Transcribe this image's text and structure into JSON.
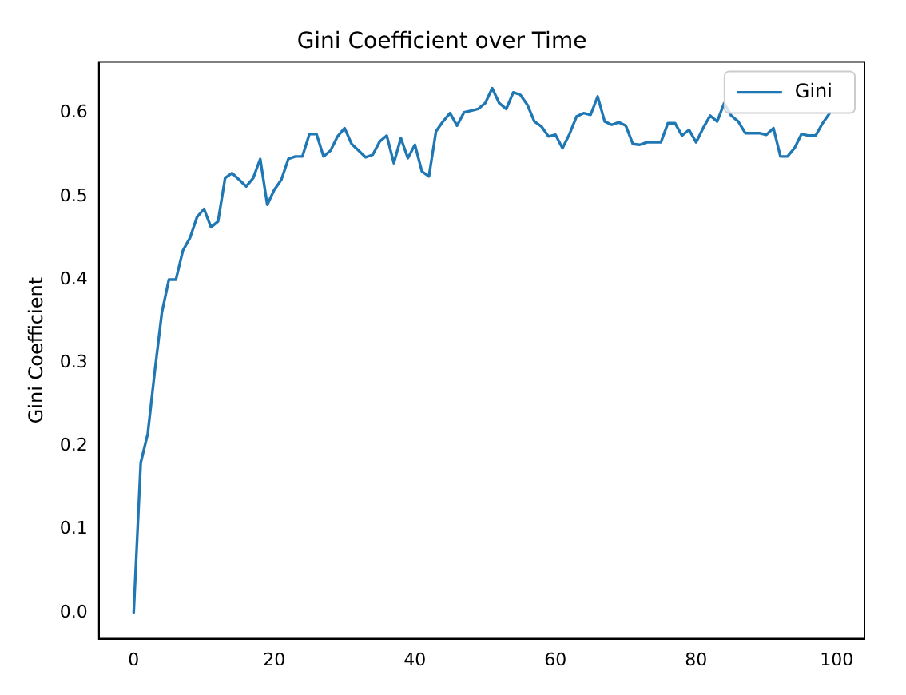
{
  "chart_data": {
    "type": "line",
    "title": "Gini Coefficient over Time",
    "ylabel": "Gini Coefficient",
    "x": [
      0,
      1,
      2,
      3,
      4,
      5,
      6,
      7,
      8,
      9,
      10,
      11,
      12,
      13,
      14,
      15,
      16,
      17,
      18,
      19,
      20,
      21,
      22,
      23,
      24,
      25,
      26,
      27,
      28,
      29,
      30,
      31,
      32,
      33,
      34,
      35,
      36,
      37,
      38,
      39,
      40,
      41,
      42,
      43,
      44,
      45,
      46,
      47,
      48,
      49,
      50,
      51,
      52,
      53,
      54,
      55,
      56,
      57,
      58,
      59,
      60,
      61,
      62,
      63,
      64,
      65,
      66,
      67,
      68,
      69,
      70,
      71,
      72,
      73,
      74,
      75,
      76,
      77,
      78,
      79,
      80,
      81,
      82,
      83,
      84,
      85,
      86,
      87,
      88,
      89,
      90,
      91,
      92,
      93,
      94,
      95,
      96,
      97,
      98,
      99
    ],
    "series": [
      {
        "name": "Gini",
        "color": "#1f77b4",
        "values": [
          0.0,
          0.18,
          0.215,
          0.29,
          0.36,
          0.4,
          0.4,
          0.435,
          0.45,
          0.475,
          0.485,
          0.463,
          0.47,
          0.522,
          0.528,
          0.52,
          0.512,
          0.522,
          0.545,
          0.49,
          0.508,
          0.52,
          0.545,
          0.548,
          0.548,
          0.575,
          0.575,
          0.548,
          0.555,
          0.572,
          0.582,
          0.563,
          0.555,
          0.547,
          0.55,
          0.566,
          0.573,
          0.54,
          0.57,
          0.546,
          0.562,
          0.53,
          0.524,
          0.578,
          0.59,
          0.6,
          0.585,
          0.601,
          0.603,
          0.605,
          0.612,
          0.63,
          0.612,
          0.605,
          0.625,
          0.622,
          0.61,
          0.59,
          0.584,
          0.572,
          0.574,
          0.558,
          0.575,
          0.596,
          0.6,
          0.598,
          0.62,
          0.59,
          0.586,
          0.589,
          0.585,
          0.563,
          0.562,
          0.565,
          0.565,
          0.565,
          0.588,
          0.588,
          0.573,
          0.58,
          0.565,
          0.582,
          0.597,
          0.59,
          0.612,
          0.597,
          0.59,
          0.576,
          0.576,
          0.576,
          0.574,
          0.582,
          0.548,
          0.548,
          0.558,
          0.575,
          0.573,
          0.573,
          0.588,
          0.6
        ]
      }
    ],
    "xlim": [
      -4.95,
      103.95
    ],
    "ylim": [
      -0.0315,
      0.6615
    ],
    "xticks": [
      0,
      20,
      40,
      60,
      80,
      100
    ],
    "yticks": [
      {
        "value": 0,
        "label": "0.0"
      },
      {
        "value": 0.1,
        "label": "0.1"
      },
      {
        "value": 0.2,
        "label": "0.2"
      },
      {
        "value": 0.3,
        "label": "0.3"
      },
      {
        "value": 0.4,
        "label": "0.4"
      },
      {
        "value": 0.5,
        "label": "0.5"
      },
      {
        "value": 0.6,
        "label": "0.6"
      }
    ],
    "legend": "top right",
    "grid": false,
    "marker": "none",
    "line_style": "solid"
  }
}
